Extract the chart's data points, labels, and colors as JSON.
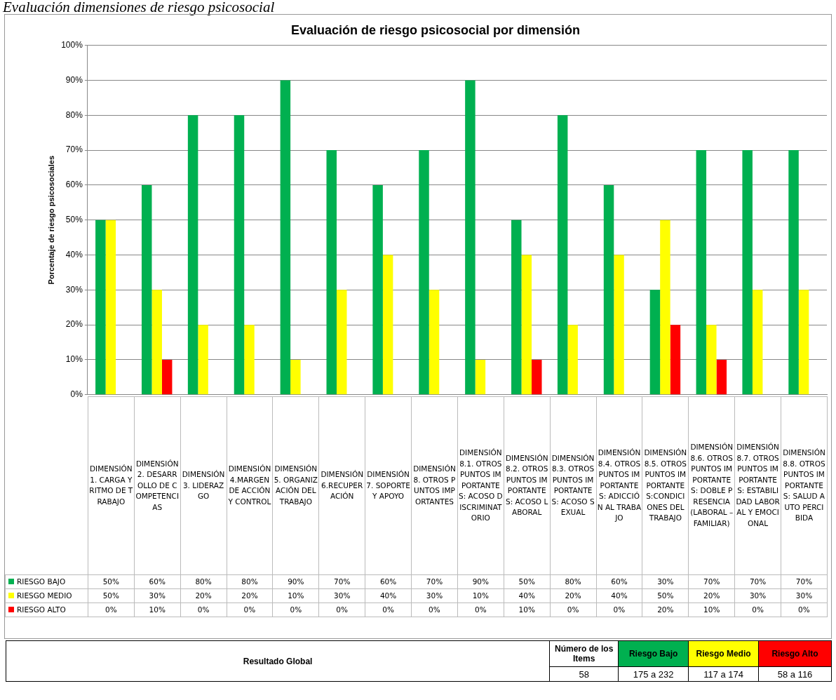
{
  "chart_data": {
    "type": "bar",
    "title": "Evaluación de riesgo psicosocial por dimensión",
    "subtitle": "Evaluación dimensiones de riesgo psicosocial",
    "ylabel": "Porcentaje de riesgo psicosociales",
    "categories": [
      "DIMENSIÓN 1. CARGA Y RITMO DE TRABAJO",
      "DIMENSIÓN 2. DESARROLLO DE COMPETENCIAS",
      "DIMENSIÓN 3. LIDERAZGO",
      "DIMENSIÓN 4.MARGEN DE ACCIÓN Y CONTROL",
      "DIMENSIÓN 5. ORGANIZACIÓN DEL TRABAJO",
      "DIMENSIÓN 6.RECUPERACIÓN",
      "DIMENSIÓN 7. SOPORTE Y APOYO",
      "DIMENSIÓN 8. OTROS PUNTOS IMPORTANTES",
      "DIMENSIÓN 8.1. OTROS PUNTOS IMPORTANTES: ACOSO DISCRIMINATORIO",
      "DIMENSIÓN 8.2. OTROS PUNTOS IMPORTANTES: ACOSO LABORAL",
      "DIMENSIÓN 8.3. OTROS PUNTOS IMPORTANTES: ACOSO SEXUAL",
      "DIMENSIÓN 8.4. OTROS PUNTOS IMPORTANTES: ADICCIÓN AL TRABAJO",
      "DIMENSIÓN 8.5. OTROS PUNTOS IMPORTANTES:CONDICIONES DEL TRABAJO",
      "DIMENSIÓN 8.6. OTROS PUNTOS IMPORTANTES: DOBLE PRESENCIA (LABORAL – FAMILIAR)",
      "DIMENSIÓN 8.7. OTROS PUNTOS IMPORTANTES: ESTABILIDAD LABORAL Y EMOCIONAL",
      "DIMENSIÓN 8.8. OTROS PUNTOS IMPORTANTES: SALUD AUTO PERCIBIDA"
    ],
    "series": [
      {
        "name": "RIESGO BAJO",
        "color": "#00b050",
        "values": [
          50,
          60,
          80,
          80,
          90,
          70,
          60,
          70,
          90,
          50,
          80,
          60,
          30,
          70,
          70,
          70
        ],
        "value_labels": [
          "50%",
          "60%",
          "80%",
          "80%",
          "90%",
          "70%",
          "60%",
          "70%",
          "90%",
          "50%",
          "80%",
          "60%",
          "30%",
          "70%",
          "70%",
          "70%"
        ]
      },
      {
        "name": "RIESGO MEDIO",
        "color": "#ffff00",
        "values": [
          50,
          30,
          20,
          20,
          10,
          30,
          40,
          30,
          10,
          40,
          20,
          40,
          50,
          20,
          30,
          30
        ],
        "value_labels": [
          "50%",
          "30%",
          "20%",
          "20%",
          "10%",
          "30%",
          "40%",
          "30%",
          "10%",
          "40%",
          "20%",
          "40%",
          "50%",
          "20%",
          "30%",
          "30%"
        ]
      },
      {
        "name": "RIESGO ALTO",
        "color": "#ff0000",
        "values": [
          0,
          10,
          0,
          0,
          0,
          0,
          0,
          0,
          0,
          10,
          0,
          0,
          20,
          10,
          0,
          0
        ],
        "value_labels": [
          "0%",
          "10%",
          "0%",
          "0%",
          "0%",
          "0%",
          "0%",
          "0%",
          "0%",
          "10%",
          "0%",
          "0%",
          "20%",
          "10%",
          "0%",
          "0%"
        ]
      }
    ],
    "ylim": [
      0,
      100
    ],
    "yticks": [
      {
        "value": 0,
        "label": "0%"
      },
      {
        "value": 10,
        "label": "10%"
      },
      {
        "value": 20,
        "label": "20%"
      },
      {
        "value": 30,
        "label": "30%"
      },
      {
        "value": 40,
        "label": "40%"
      },
      {
        "value": 50,
        "label": "50%"
      },
      {
        "value": 60,
        "label": "60%"
      },
      {
        "value": 70,
        "label": "70%"
      },
      {
        "value": 80,
        "label": "80%"
      },
      {
        "value": 90,
        "label": "90%"
      },
      {
        "value": 100,
        "label": "100%"
      }
    ],
    "grid": "y",
    "legend": "bottom",
    "annotations": [
      "Resultado Global",
      "Número de los Items",
      "Riesgo Bajo",
      "Riesgo Medio",
      "Riesgo Alto",
      "58",
      "175 a 232",
      "117 a 174",
      "58 a 116"
    ]
  }
}
